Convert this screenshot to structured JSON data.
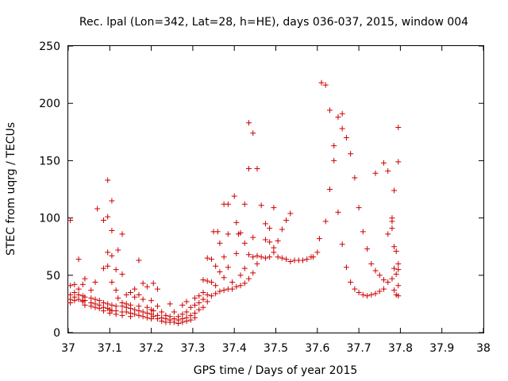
{
  "chart_data": {
    "type": "scatter",
    "title": "Rec. lpal (Lon=342, Lat=28, h=HE), days 036-037, 2015, window 004",
    "xlabel": "GPS time / Days of year 2015",
    "ylabel": "STEC from uqrg / TECUs",
    "xlim": [
      37,
      38
    ],
    "ylim": [
      0,
      250
    ],
    "xticks": [
      "37",
      "37.1",
      "37.2",
      "37.3",
      "37.4",
      "37.5",
      "37.6",
      "37.7",
      "37.8",
      "37.9",
      "38"
    ],
    "yticks": [
      "0",
      "50",
      "100",
      "150",
      "200",
      "250"
    ],
    "grid": false,
    "legend": "none",
    "marker": "plus",
    "color": "#cc0000",
    "points": [
      [
        37.005,
        98
      ],
      [
        37.005,
        41
      ],
      [
        37.005,
        33
      ],
      [
        37.005,
        29
      ],
      [
        37.005,
        26
      ],
      [
        37.015,
        42
      ],
      [
        37.015,
        35
      ],
      [
        37.015,
        31
      ],
      [
        37.015,
        28
      ],
      [
        37.025,
        64
      ],
      [
        37.025,
        38
      ],
      [
        37.025,
        33
      ],
      [
        37.025,
        29
      ],
      [
        37.035,
        42
      ],
      [
        37.035,
        32
      ],
      [
        37.035,
        28
      ],
      [
        37.035,
        27
      ],
      [
        37.04,
        47
      ],
      [
        37.04,
        31
      ],
      [
        37.04,
        28
      ],
      [
        37.04,
        24
      ],
      [
        37.055,
        37
      ],
      [
        37.055,
        30
      ],
      [
        37.055,
        26
      ],
      [
        37.055,
        23
      ],
      [
        37.065,
        44
      ],
      [
        37.065,
        29
      ],
      [
        37.065,
        25
      ],
      [
        37.065,
        22
      ],
      [
        37.07,
        108
      ],
      [
        37.075,
        28
      ],
      [
        37.075,
        24
      ],
      [
        37.075,
        21
      ],
      [
        37.085,
        98
      ],
      [
        37.085,
        56
      ],
      [
        37.085,
        26
      ],
      [
        37.085,
        22
      ],
      [
        37.085,
        19
      ],
      [
        37.095,
        133
      ],
      [
        37.095,
        101
      ],
      [
        37.095,
        70
      ],
      [
        37.095,
        58
      ],
      [
        37.095,
        25
      ],
      [
        37.095,
        21
      ],
      [
        37.1,
        20
      ],
      [
        37.1,
        17
      ],
      [
        37.105,
        115
      ],
      [
        37.105,
        89
      ],
      [
        37.105,
        67
      ],
      [
        37.105,
        44
      ],
      [
        37.105,
        24
      ],
      [
        37.105,
        19
      ],
      [
        37.115,
        55
      ],
      [
        37.115,
        37
      ],
      [
        37.115,
        23
      ],
      [
        37.115,
        19
      ],
      [
        37.115,
        16
      ],
      [
        37.12,
        72
      ],
      [
        37.12,
        30
      ],
      [
        37.13,
        86
      ],
      [
        37.13,
        51
      ],
      [
        37.13,
        26
      ],
      [
        37.13,
        23
      ],
      [
        37.13,
        18
      ],
      [
        37.13,
        15
      ],
      [
        37.14,
        33
      ],
      [
        37.14,
        25
      ],
      [
        37.14,
        22
      ],
      [
        37.14,
        18
      ],
      [
        37.15,
        35
      ],
      [
        37.15,
        24
      ],
      [
        37.15,
        21
      ],
      [
        37.15,
        17
      ],
      [
        37.15,
        14
      ],
      [
        37.16,
        38
      ],
      [
        37.16,
        31
      ],
      [
        37.16,
        20
      ],
      [
        37.16,
        16
      ],
      [
        37.17,
        63
      ],
      [
        37.17,
        33
      ],
      [
        37.17,
        23
      ],
      [
        37.17,
        19
      ],
      [
        37.17,
        15
      ],
      [
        37.18,
        43
      ],
      [
        37.18,
        29
      ],
      [
        37.18,
        18
      ],
      [
        37.18,
        14
      ],
      [
        37.19,
        40
      ],
      [
        37.19,
        22
      ],
      [
        37.19,
        17
      ],
      [
        37.19,
        13
      ],
      [
        37.2,
        28
      ],
      [
        37.2,
        20
      ],
      [
        37.2,
        16
      ],
      [
        37.2,
        12
      ],
      [
        37.205,
        43
      ],
      [
        37.205,
        19
      ],
      [
        37.205,
        14
      ],
      [
        37.215,
        38
      ],
      [
        37.215,
        23
      ],
      [
        37.215,
        15
      ],
      [
        37.215,
        12
      ],
      [
        37.225,
        18
      ],
      [
        37.225,
        13
      ],
      [
        37.225,
        10
      ],
      [
        37.235,
        15
      ],
      [
        37.235,
        12
      ],
      [
        37.235,
        9
      ],
      [
        37.245,
        25
      ],
      [
        37.245,
        14
      ],
      [
        37.245,
        11
      ],
      [
        37.245,
        9
      ],
      [
        37.255,
        18
      ],
      [
        37.255,
        12
      ],
      [
        37.255,
        9
      ],
      [
        37.265,
        14
      ],
      [
        37.265,
        11
      ],
      [
        37.265,
        8
      ],
      [
        37.275,
        24
      ],
      [
        37.275,
        16
      ],
      [
        37.275,
        12
      ],
      [
        37.275,
        9
      ],
      [
        37.285,
        27
      ],
      [
        37.285,
        18
      ],
      [
        37.285,
        13
      ],
      [
        37.285,
        10
      ],
      [
        37.295,
        22
      ],
      [
        37.295,
        15
      ],
      [
        37.295,
        11
      ],
      [
        37.305,
        30
      ],
      [
        37.305,
        24
      ],
      [
        37.305,
        17
      ],
      [
        37.305,
        13
      ],
      [
        37.315,
        32
      ],
      [
        37.315,
        26
      ],
      [
        37.315,
        20
      ],
      [
        37.325,
        46
      ],
      [
        37.325,
        35
      ],
      [
        37.325,
        29
      ],
      [
        37.325,
        22
      ],
      [
        37.335,
        65
      ],
      [
        37.335,
        45
      ],
      [
        37.335,
        33
      ],
      [
        37.335,
        27
      ],
      [
        37.345,
        64
      ],
      [
        37.345,
        44
      ],
      [
        37.345,
        32
      ],
      [
        37.35,
        88
      ],
      [
        37.355,
        58
      ],
      [
        37.355,
        41
      ],
      [
        37.355,
        34
      ],
      [
        37.36,
        88
      ],
      [
        37.365,
        78
      ],
      [
        37.365,
        53
      ],
      [
        37.365,
        36
      ],
      [
        37.375,
        112
      ],
      [
        37.375,
        66
      ],
      [
        37.375,
        48
      ],
      [
        37.375,
        37
      ],
      [
        37.385,
        112
      ],
      [
        37.385,
        86
      ],
      [
        37.385,
        57
      ],
      [
        37.385,
        38
      ],
      [
        37.395,
        44
      ],
      [
        37.395,
        38
      ],
      [
        37.4,
        119
      ],
      [
        37.405,
        96
      ],
      [
        37.405,
        69
      ],
      [
        37.405,
        40
      ],
      [
        37.41,
        86
      ],
      [
        37.415,
        87
      ],
      [
        37.415,
        50
      ],
      [
        37.415,
        41
      ],
      [
        37.425,
        112
      ],
      [
        37.425,
        78
      ],
      [
        37.425,
        56
      ],
      [
        37.425,
        43
      ],
      [
        37.435,
        183
      ],
      [
        37.435,
        143
      ],
      [
        37.435,
        68
      ],
      [
        37.435,
        47
      ],
      [
        37.445,
        174
      ],
      [
        37.445,
        83
      ],
      [
        37.445,
        66
      ],
      [
        37.445,
        52
      ],
      [
        37.455,
        143
      ],
      [
        37.455,
        67
      ],
      [
        37.455,
        60
      ],
      [
        37.465,
        111
      ],
      [
        37.465,
        66
      ],
      [
        37.475,
        95
      ],
      [
        37.475,
        81
      ],
      [
        37.475,
        65
      ],
      [
        37.485,
        91
      ],
      [
        37.485,
        79
      ],
      [
        37.485,
        66
      ],
      [
        37.495,
        109
      ],
      [
        37.495,
        74
      ],
      [
        37.495,
        70
      ],
      [
        37.505,
        80
      ],
      [
        37.505,
        66
      ],
      [
        37.515,
        90
      ],
      [
        37.515,
        65
      ],
      [
        37.525,
        98
      ],
      [
        37.525,
        64
      ],
      [
        37.535,
        104
      ],
      [
        37.535,
        62
      ],
      [
        37.545,
        63
      ],
      [
        37.555,
        63
      ],
      [
        37.565,
        63
      ],
      [
        37.575,
        64
      ],
      [
        37.585,
        66
      ],
      [
        37.59,
        66
      ],
      [
        37.6,
        70
      ],
      [
        37.605,
        82
      ],
      [
        37.61,
        218
      ],
      [
        37.62,
        216
      ],
      [
        37.62,
        97
      ],
      [
        37.63,
        194
      ],
      [
        37.63,
        125
      ],
      [
        37.64,
        163
      ],
      [
        37.64,
        150
      ],
      [
        37.65,
        188
      ],
      [
        37.65,
        105
      ],
      [
        37.66,
        191
      ],
      [
        37.66,
        178
      ],
      [
        37.66,
        77
      ],
      [
        37.67,
        170
      ],
      [
        37.67,
        57
      ],
      [
        37.68,
        156
      ],
      [
        37.68,
        44
      ],
      [
        37.69,
        135
      ],
      [
        37.69,
        38
      ],
      [
        37.7,
        109
      ],
      [
        37.7,
        35
      ],
      [
        37.71,
        88
      ],
      [
        37.71,
        33
      ],
      [
        37.72,
        73
      ],
      [
        37.72,
        32
      ],
      [
        37.73,
        60
      ],
      [
        37.73,
        33
      ],
      [
        37.74,
        139
      ],
      [
        37.74,
        54
      ],
      [
        37.74,
        34
      ],
      [
        37.75,
        50
      ],
      [
        37.75,
        36
      ],
      [
        37.76,
        148
      ],
      [
        37.76,
        46
      ],
      [
        37.76,
        38
      ],
      [
        37.77,
        141
      ],
      [
        37.77,
        86
      ],
      [
        37.77,
        44
      ],
      [
        37.78,
        100
      ],
      [
        37.78,
        97
      ],
      [
        37.78,
        91
      ],
      [
        37.78,
        47
      ],
      [
        37.785,
        124
      ],
      [
        37.785,
        75
      ],
      [
        37.785,
        56
      ],
      [
        37.785,
        37
      ],
      [
        37.79,
        71
      ],
      [
        37.79,
        51
      ],
      [
        37.79,
        33
      ],
      [
        37.795,
        179
      ],
      [
        37.795,
        149
      ],
      [
        37.795,
        60
      ],
      [
        37.795,
        55
      ],
      [
        37.795,
        41
      ],
      [
        37.795,
        32
      ]
    ]
  }
}
